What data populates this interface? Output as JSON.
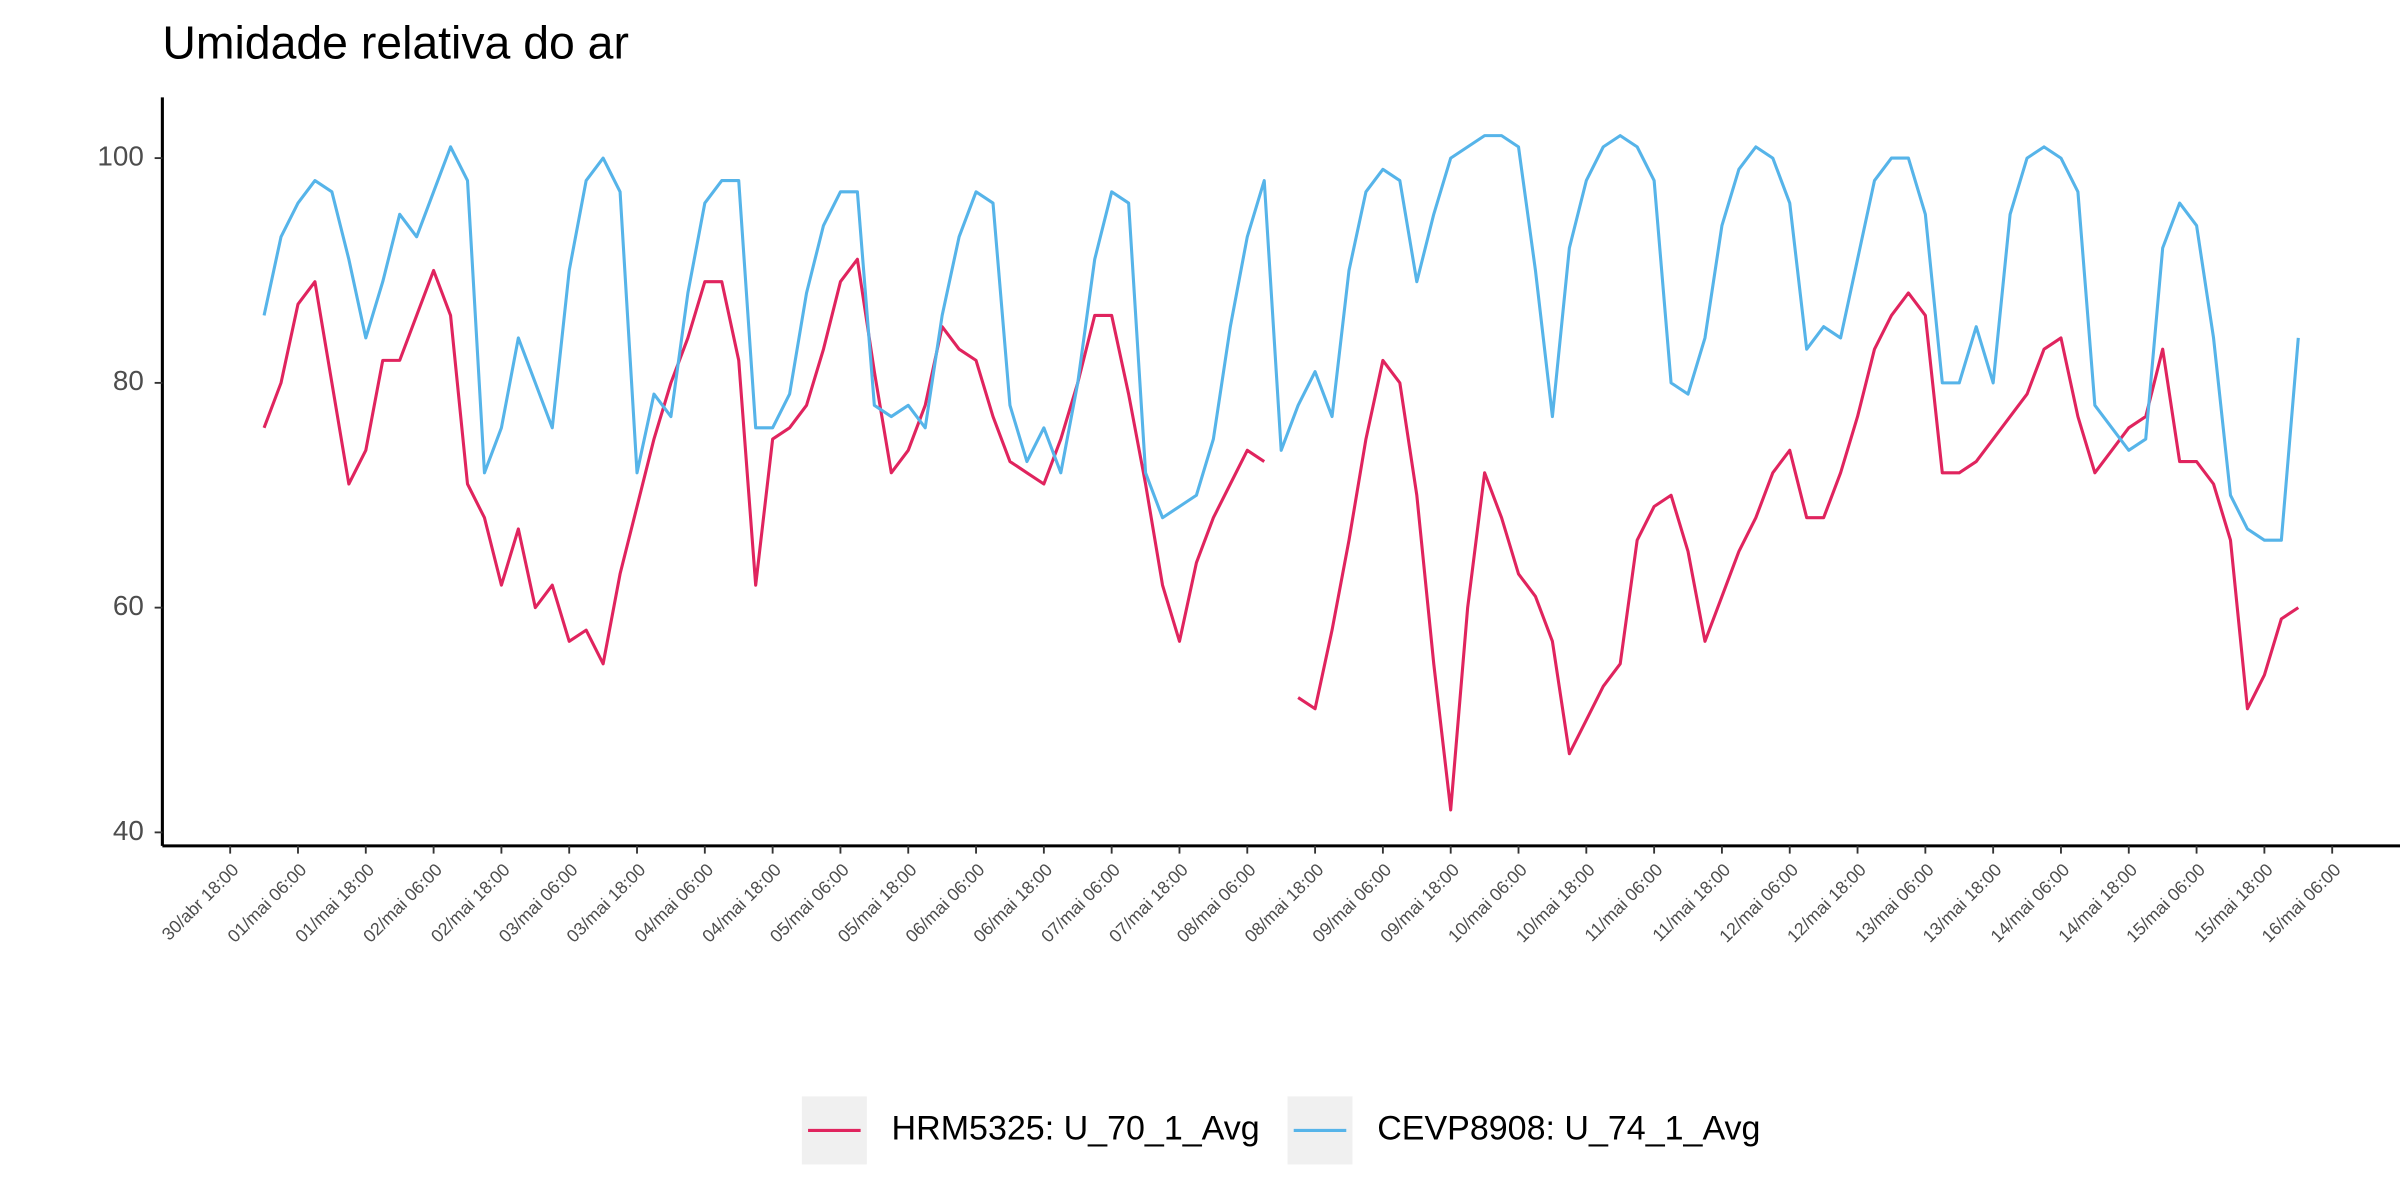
{
  "chart_data": {
    "type": "line",
    "title": "Umidade relativa do ar",
    "x": [
      "01/mai 00:00",
      "01/mai 03:00",
      "01/mai 06:00",
      "01/mai 09:00",
      "01/mai 12:00",
      "01/mai 15:00",
      "01/mai 18:00",
      "01/mai 21:00",
      "02/mai 00:00",
      "02/mai 03:00",
      "02/mai 06:00",
      "02/mai 09:00",
      "02/mai 12:00",
      "02/mai 15:00",
      "02/mai 18:00",
      "02/mai 21:00",
      "03/mai 00:00",
      "03/mai 03:00",
      "03/mai 06:00",
      "03/mai 09:00",
      "03/mai 12:00",
      "03/mai 15:00",
      "03/mai 18:00",
      "03/mai 21:00",
      "04/mai 00:00",
      "04/mai 03:00",
      "04/mai 06:00",
      "04/mai 09:00",
      "04/mai 12:00",
      "04/mai 15:00",
      "04/mai 18:00",
      "04/mai 21:00",
      "05/mai 00:00",
      "05/mai 03:00",
      "05/mai 06:00",
      "05/mai 09:00",
      "05/mai 12:00",
      "05/mai 15:00",
      "05/mai 18:00",
      "05/mai 21:00",
      "06/mai 00:00",
      "06/mai 03:00",
      "06/mai 06:00",
      "06/mai 09:00",
      "06/mai 12:00",
      "06/mai 15:00",
      "06/mai 18:00",
      "06/mai 21:00",
      "07/mai 00:00",
      "07/mai 03:00",
      "07/mai 06:00",
      "07/mai 09:00",
      "07/mai 12:00",
      "07/mai 15:00",
      "07/mai 18:00",
      "07/mai 21:00",
      "08/mai 00:00",
      "08/mai 03:00",
      "08/mai 06:00",
      "08/mai 09:00",
      "08/mai 12:00",
      "08/mai 15:00",
      "08/mai 18:00",
      "08/mai 21:00",
      "09/mai 00:00",
      "09/mai 03:00",
      "09/mai 06:00",
      "09/mai 09:00",
      "09/mai 12:00",
      "09/mai 15:00",
      "09/mai 18:00",
      "09/mai 21:00",
      "10/mai 00:00",
      "10/mai 03:00",
      "10/mai 06:00",
      "10/mai 09:00",
      "10/mai 12:00",
      "10/mai 15:00",
      "10/mai 18:00",
      "10/mai 21:00",
      "11/mai 00:00",
      "11/mai 03:00",
      "11/mai 06:00",
      "11/mai 09:00",
      "11/mai 12:00",
      "11/mai 15:00",
      "11/mai 18:00",
      "11/mai 21:00",
      "12/mai 00:00",
      "12/mai 03:00",
      "12/mai 06:00",
      "12/mai 09:00",
      "12/mai 12:00",
      "12/mai 15:00",
      "12/mai 18:00",
      "12/mai 21:00",
      "13/mai 00:00",
      "13/mai 03:00",
      "13/mai 06:00",
      "13/mai 09:00",
      "13/mai 12:00",
      "13/mai 15:00",
      "13/mai 18:00",
      "13/mai 21:00",
      "14/mai 00:00",
      "14/mai 03:00",
      "14/mai 06:00",
      "14/mai 09:00",
      "14/mai 12:00",
      "14/mai 15:00",
      "14/mai 18:00",
      "14/mai 21:00",
      "15/mai 00:00",
      "15/mai 03:00",
      "15/mai 06:00",
      "15/mai 09:00",
      "15/mai 12:00",
      "15/mai 15:00",
      "15/mai 18:00",
      "15/mai 21:00",
      "16/mai 00:00"
    ],
    "series": [
      {
        "name": "HRM5325: U_70_1_Avg",
        "color": "#e0245e",
        "values": [
          76,
          80,
          87,
          89,
          80,
          71,
          74,
          82,
          82,
          86,
          90,
          86,
          71,
          68,
          62,
          67,
          60,
          62,
          57,
          58,
          55,
          63,
          69,
          75,
          80,
          84,
          89,
          89,
          82,
          62,
          75,
          76,
          78,
          83,
          89,
          91,
          81,
          72,
          74,
          78,
          85,
          83,
          82,
          77,
          73,
          72,
          71,
          75,
          80,
          86,
          86,
          79,
          71,
          62,
          57,
          64,
          68,
          71,
          74,
          73,
          null,
          52,
          51,
          58,
          66,
          75,
          82,
          80,
          70,
          55,
          42,
          60,
          72,
          68,
          63,
          61,
          57,
          47,
          50,
          53,
          55,
          66,
          69,
          70,
          65,
          57,
          61,
          65,
          68,
          72,
          74,
          68,
          68,
          72,
          77,
          83,
          86,
          88,
          86,
          72,
          72,
          73,
          75,
          77,
          79,
          83,
          84,
          77,
          72,
          74,
          76,
          77,
          83,
          73,
          73,
          71,
          66,
          51,
          54,
          59,
          60
        ]
      },
      {
        "name": "CEVP8908: U_74_1_Avg",
        "color": "#56b4e9",
        "values": [
          86,
          93,
          96,
          98,
          97,
          91,
          84,
          89,
          95,
          93,
          97,
          101,
          98,
          72,
          76,
          84,
          80,
          76,
          90,
          98,
          100,
          97,
          72,
          79,
          77,
          88,
          96,
          98,
          98,
          76,
          76,
          79,
          88,
          94,
          97,
          97,
          78,
          77,
          78,
          76,
          86,
          93,
          97,
          96,
          78,
          73,
          76,
          72,
          80,
          91,
          97,
          96,
          72,
          68,
          69,
          70,
          75,
          85,
          93,
          98,
          74,
          78,
          81,
          77,
          90,
          97,
          99,
          98,
          89,
          95,
          100,
          101,
          102,
          102,
          101,
          90,
          77,
          92,
          98,
          101,
          102,
          101,
          98,
          80,
          79,
          84,
          94,
          99,
          101,
          100,
          96,
          83,
          85,
          84,
          91,
          98,
          100,
          100,
          95,
          80,
          80,
          85,
          80,
          95,
          100,
          101,
          100,
          97,
          78,
          76,
          74,
          75,
          92,
          96,
          94,
          84,
          70,
          67,
          66,
          66,
          84
        ]
      }
    ],
    "xlim": [
      "30/abr 06:00",
      "16/mai 18:00"
    ],
    "xticks": [
      "30/abr 18:00",
      "01/mai 06:00",
      "01/mai 18:00",
      "02/mai 06:00",
      "02/mai 18:00",
      "03/mai 06:00",
      "03/mai 18:00",
      "04/mai 06:00",
      "04/mai 18:00",
      "05/mai 06:00",
      "05/mai 18:00",
      "06/mai 06:00",
      "06/mai 18:00",
      "07/mai 06:00",
      "07/mai 18:00",
      "08/mai 06:00",
      "08/mai 18:00",
      "09/mai 06:00",
      "09/mai 18:00",
      "10/mai 06:00",
      "10/mai 18:00",
      "11/mai 06:00",
      "11/mai 18:00",
      "12/mai 06:00",
      "12/mai 18:00",
      "13/mai 06:00",
      "13/mai 18:00",
      "14/mai 06:00",
      "14/mai 18:00",
      "15/mai 06:00",
      "15/mai 18:00",
      "16/mai 06:00"
    ],
    "ylim": [
      38.8,
      105.4
    ],
    "yticks": [
      40,
      60,
      80,
      100
    ],
    "grid": false,
    "legend": "bottom"
  }
}
